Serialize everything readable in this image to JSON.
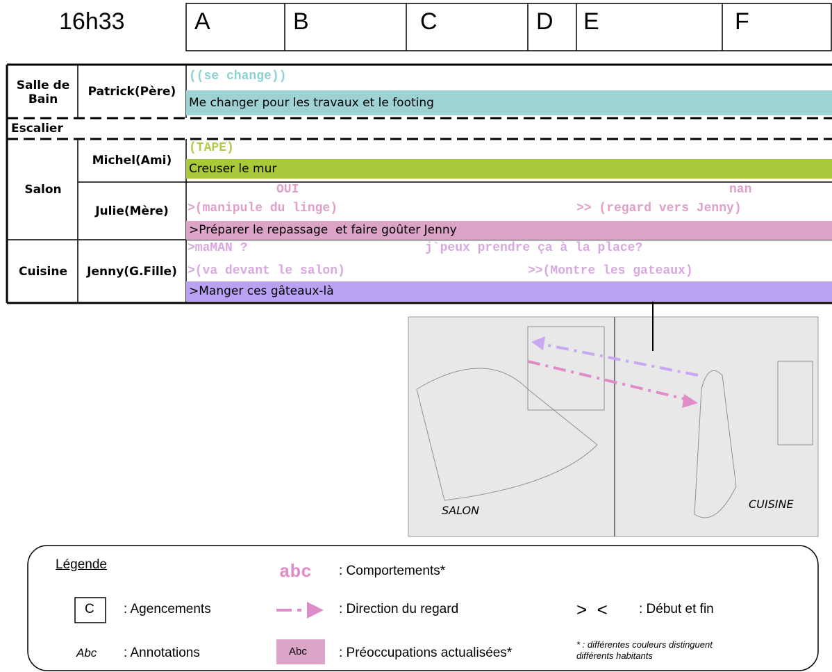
{
  "header": {
    "time": "16h33",
    "columns": [
      "A",
      "B",
      "C",
      "D",
      "E",
      "F"
    ]
  },
  "table": {
    "places": [
      "Salle de Bain",
      "Escalier",
      "Salon",
      "Cuisine"
    ],
    "persons": [
      {
        "name": "Patrick(Père)",
        "behaviors": [
          "((se change))"
        ],
        "concern": "Me changer pour les travaux et le footing"
      },
      {
        "name": "Michel(Ami)",
        "behaviors": [
          "(TAPE)"
        ],
        "concern": "Creuser le mur"
      },
      {
        "name": "Julie(Mère)",
        "behaviors": [
          "OUI",
          "nan",
          ">(manipule du linge)",
          ">> (regard vers Jenny)"
        ],
        "concern": ">Préparer le repassage  et faire goûter Jenny"
      },
      {
        "name": "Jenny(G.Fille)",
        "behaviors": [
          ">maMAN ?",
          "j`peux prendre ça à la place?",
          ">(va devant le salon)",
          ">>(Montre les gateaux)"
        ],
        "concern": ">Manger ces gâteaux-là"
      }
    ]
  },
  "photo": {
    "labels": [
      "SALON",
      "CUISINE"
    ]
  },
  "legend": {
    "title": "Légende",
    "items": [
      {
        "symbol": "C",
        "text": ": Agencements"
      },
      {
        "symbol": "Abc",
        "text": ": Annotations"
      },
      {
        "symbol": "abc",
        "text": ": Comportements*"
      },
      {
        "text": ": Direction du regard"
      },
      {
        "symbol": "Abc",
        "text": ": Préoccupations actualisées*"
      },
      {
        "symbol": ">  <",
        "text": ": Début et fin"
      }
    ],
    "note": "* : différentes couleurs distinguent différents habitants"
  }
}
